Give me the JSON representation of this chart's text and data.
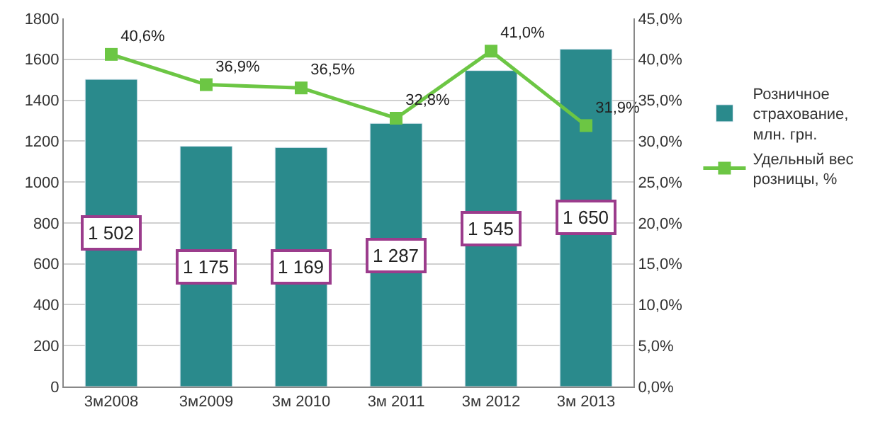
{
  "chart_data": {
    "type": "bar",
    "categories": [
      "3м2008",
      "3м2009",
      "3м 2010",
      "3м 2011",
      "3м 2012",
      "3м 2013"
    ],
    "series": [
      {
        "name": "Розничное страхование, млн. грн.",
        "color": "#2a8a8c",
        "values": [
          1502,
          1175,
          1169,
          1287,
          1545,
          1650
        ],
        "value_labels": [
          "1 502",
          "1 175",
          "1 169",
          "1 287",
          "1 545",
          "1 650"
        ]
      },
      {
        "name": "Удельный вес розницы, %",
        "type": "line",
        "axis": "y2",
        "color": "#6cc644",
        "marker": "square",
        "values": [
          40.6,
          36.9,
          36.5,
          32.8,
          41.0,
          31.9
        ],
        "value_labels": [
          "40,6%",
          "36,9%",
          "36,5%",
          "32,8%",
          "41,0%",
          "31,9%"
        ]
      }
    ],
    "ylim": [
      0,
      1800
    ],
    "yticks": [
      0,
      200,
      400,
      600,
      800,
      1000,
      1200,
      1400,
      1600,
      1800
    ],
    "y2lim": [
      0,
      45
    ],
    "y2ticks": [
      {
        "value": 0,
        "label": "0,0%"
      },
      {
        "value": 5,
        "label": "5,0%"
      },
      {
        "value": 10,
        "label": "10,0%"
      },
      {
        "value": 15,
        "label": "15,0%"
      },
      {
        "value": 20,
        "label": "20,0%"
      },
      {
        "value": 25,
        "label": "25,0%"
      },
      {
        "value": 30,
        "label": "30,0%"
      },
      {
        "value": 35,
        "label": "35,0%"
      },
      {
        "value": 40,
        "label": "40,0%"
      },
      {
        "value": 45,
        "label": "45,0%"
      }
    ],
    "grid": "y",
    "legend": "right"
  }
}
